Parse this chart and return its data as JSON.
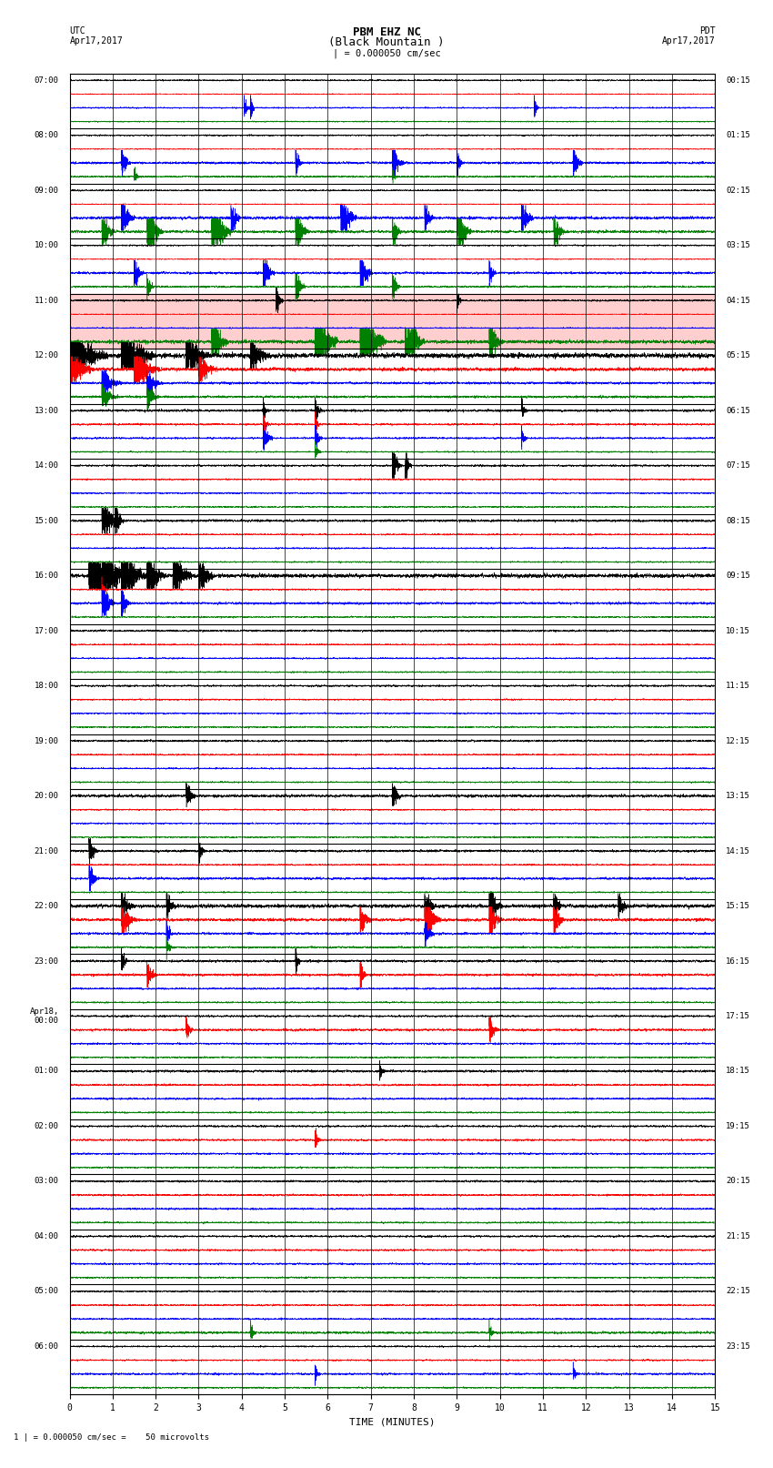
{
  "title_line1": "PBM EHZ NC",
  "title_line2": "(Black Mountain )",
  "title_line3": "| = 0.000050 cm/sec",
  "left_header_top": "UTC",
  "left_header_date": "Apr17,2017",
  "right_header_top": "PDT",
  "right_header_date": "Apr17,2017",
  "xlabel": "TIME (MINUTES)",
  "footer": "1 | = 0.000050 cm/sec =    50 microvolts",
  "bg_color": "#ffffff",
  "highlight_row": 4,
  "highlight_color": "#ffcccc",
  "trace_colors": [
    "#000000",
    "#ff0000",
    "#0000ff",
    "#008000"
  ],
  "num_rows": 24,
  "minutes_per_row": 15,
  "samples_per_trace": 9000,
  "left_labels": [
    "07:00",
    "08:00",
    "09:00",
    "10:00",
    "11:00",
    "12:00",
    "13:00",
    "14:00",
    "15:00",
    "16:00",
    "17:00",
    "18:00",
    "19:00",
    "20:00",
    "21:00",
    "22:00",
    "23:00",
    "Apr18,\n00:00",
    "01:00",
    "02:00",
    "03:00",
    "04:00",
    "05:00",
    "06:00"
  ],
  "right_labels": [
    "00:15",
    "01:15",
    "02:15",
    "03:15",
    "04:15",
    "05:15",
    "06:15",
    "07:15",
    "08:15",
    "09:15",
    "10:15",
    "11:15",
    "12:15",
    "13:15",
    "14:15",
    "15:15",
    "16:15",
    "17:15",
    "18:15",
    "19:15",
    "20:15",
    "21:15",
    "22:15",
    "23:15"
  ],
  "xlim": [
    0,
    15
  ],
  "xticks": [
    0,
    1,
    2,
    3,
    4,
    5,
    6,
    7,
    8,
    9,
    10,
    11,
    12,
    13,
    14,
    15
  ]
}
